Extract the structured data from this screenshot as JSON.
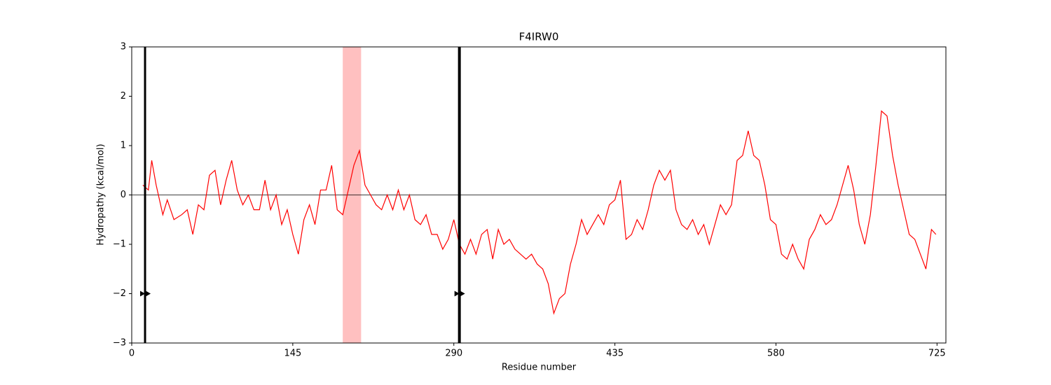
{
  "chart_data": {
    "type": "line",
    "title": "F4IRW0",
    "xlabel": "Residue number",
    "ylabel": "Hydropathy (kcal/mol)",
    "xlim": [
      0,
      733
    ],
    "ylim": [
      -3,
      3
    ],
    "xticks": [
      0,
      145,
      290,
      435,
      580,
      725
    ],
    "yticks": [
      {
        "value": -3,
        "label": "−3"
      },
      {
        "value": -2,
        "label": "−2"
      },
      {
        "value": -1,
        "label": "−1"
      },
      0,
      1,
      2,
      3
    ],
    "hline": 0,
    "hline_color": "#000000",
    "span": [
      190,
      206.5
    ],
    "span_color": "#ffc0c0",
    "vlines": [
      12,
      295
    ],
    "vline_color": "#000000",
    "markers": {
      "x": [
        12,
        295
      ],
      "y": [
        -2,
        -2
      ],
      "color": "#000000"
    },
    "series": [
      {
        "color": "#ff0000",
        "x": [
          10,
          15,
          18,
          22,
          28,
          32,
          38,
          45,
          50,
          55,
          60,
          65,
          70,
          75,
          80,
          85,
          90,
          95,
          100,
          105,
          110,
          115,
          120,
          125,
          130,
          135,
          140,
          145,
          150,
          155,
          160,
          165,
          170,
          175,
          180,
          185,
          190,
          195,
          200,
          205,
          210,
          215,
          220,
          225,
          230,
          235,
          240,
          245,
          250,
          255,
          260,
          265,
          270,
          275,
          280,
          285,
          290,
          295,
          300,
          305,
          310,
          315,
          320,
          325,
          330,
          335,
          340,
          345,
          350,
          355,
          360,
          365,
          370,
          375,
          380,
          385,
          390,
          395,
          400,
          405,
          410,
          415,
          420,
          425,
          430,
          435,
          440,
          445,
          450,
          455,
          460,
          465,
          470,
          475,
          480,
          485,
          490,
          495,
          500,
          505,
          510,
          515,
          520,
          525,
          530,
          535,
          540,
          545,
          550,
          555,
          560,
          565,
          570,
          575,
          580,
          585,
          590,
          595,
          600,
          605,
          610,
          615,
          620,
          625,
          630,
          635,
          640,
          645,
          650,
          655,
          660,
          665,
          670,
          675,
          680,
          685,
          690,
          695,
          700,
          705,
          710,
          715,
          720,
          724
        ],
        "values": [
          0.2,
          0.1,
          0.7,
          0.2,
          -0.4,
          -0.1,
          -0.5,
          -0.4,
          -0.3,
          -0.8,
          -0.2,
          -0.3,
          0.4,
          0.5,
          -0.2,
          0.3,
          0.7,
          0.1,
          -0.2,
          0,
          -0.3,
          -0.3,
          0.3,
          -0.3,
          0,
          -0.6,
          -0.3,
          -0.8,
          -1.2,
          -0.5,
          -0.2,
          -0.6,
          0.1,
          0.1,
          0.6,
          -0.3,
          -0.4,
          0.1,
          0.6,
          0.9,
          0.2,
          0,
          -0.2,
          -0.3,
          0,
          -0.3,
          0.1,
          -0.3,
          0,
          -0.5,
          -0.6,
          -0.4,
          -0.8,
          -0.8,
          -1.1,
          -0.9,
          -0.5,
          -1.0,
          -1.2,
          -0.9,
          -1.2,
          -0.8,
          -0.7,
          -1.3,
          -0.7,
          -1.0,
          -0.9,
          -1.1,
          -1.2,
          -1.3,
          -1.2,
          -1.4,
          -1.5,
          -1.8,
          -2.4,
          -2.1,
          -2.0,
          -1.4,
          -1.0,
          -0.5,
          -0.8,
          -0.6,
          -0.4,
          -0.6,
          -0.2,
          -0.1,
          0.3,
          -0.9,
          -0.8,
          -0.5,
          -0.7,
          -0.3,
          0.2,
          0.5,
          0.3,
          0.5,
          -0.3,
          -0.6,
          -0.7,
          -0.5,
          -0.8,
          -0.6,
          -1.0,
          -0.6,
          -0.2,
          -0.4,
          -0.2,
          0.7,
          0.8,
          1.3,
          0.8,
          0.7,
          0.2,
          -0.5,
          -0.6,
          -1.2,
          -1.3,
          -1.0,
          -1.3,
          -1.5,
          -0.9,
          -0.7,
          -0.4,
          -0.6,
          -0.5,
          -0.2,
          0.2,
          0.6,
          0.1,
          -0.6,
          -1.0,
          -0.4,
          0.6,
          1.7,
          1.6,
          0.8,
          0.2,
          -0.3,
          -0.8,
          -0.9,
          -1.2,
          -1.5,
          -0.7,
          -0.8
        ]
      }
    ]
  }
}
